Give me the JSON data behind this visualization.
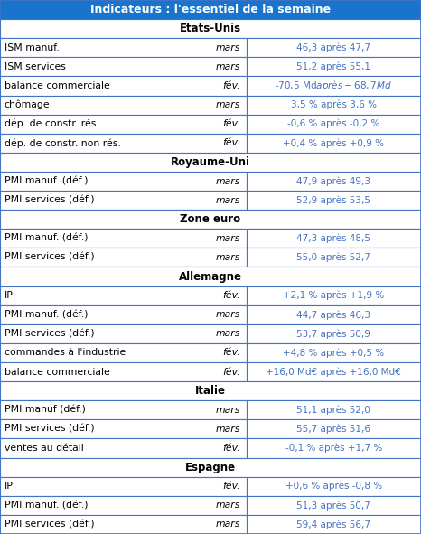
{
  "title": "Indicateurs : l'essentiel de la semaine",
  "title_bg": "#1874CD",
  "title_fg": "#FFFFFF",
  "col3_fg": "#4472C4",
  "border_color": "#4472C4",
  "col_split": 0.585,
  "sections": [
    {
      "name": "Etats-Unis",
      "rows": [
        [
          "ISM manuf.",
          "mars",
          "46,3 après 47,7"
        ],
        [
          "ISM services",
          "mars",
          "51,2 après 55,1"
        ],
        [
          "balance commerciale",
          "fév.",
          "-70,5 Md$ après -68,7 Md$"
        ],
        [
          "chômage",
          "mars",
          "3,5 % après 3,6 %"
        ],
        [
          "dép. de constr. rés.",
          "fév.",
          "-0,6 % après -0,2 %"
        ],
        [
          "dép. de constr. non rés.",
          "fév.",
          "+0,4 % après +0,9 %"
        ]
      ]
    },
    {
      "name": "Royaume-Uni",
      "rows": [
        [
          "PMI manuf. (déf.)",
          "mars",
          "47,9 après 49,3"
        ],
        [
          "PMI services (déf.)",
          "mars",
          "52,9 après 53,5"
        ]
      ]
    },
    {
      "name": "Zone euro",
      "rows": [
        [
          "PMI manuf. (déf.)",
          "mars",
          "47,3 après 48,5"
        ],
        [
          "PMI services (déf.)",
          "mars",
          "55,0 après 52,7"
        ]
      ]
    },
    {
      "name": "Allemagne",
      "rows": [
        [
          "IPI",
          "fév.",
          "+2,1 % après +1,9 %"
        ],
        [
          "PMI manuf. (déf.)",
          "mars",
          "44,7 après 46,3"
        ],
        [
          "PMI services (déf.)",
          "mars",
          "53,7 après 50,9"
        ],
        [
          "commandes à l'industrie",
          "fév.",
          "+4,8 % après +0,5 %"
        ],
        [
          "balance commerciale",
          "fév.",
          "+16,0 Md€ après +16,0 Md€"
        ]
      ]
    },
    {
      "name": "Italie",
      "rows": [
        [
          "PMI manuf (déf.)",
          "mars",
          "51,1 après 52,0"
        ],
        [
          "PMI services (déf.)",
          "mars",
          "55,7 après 51,6"
        ],
        [
          "ventes au détail",
          "fév.",
          "-0,1 % après +1,7 %"
        ]
      ]
    },
    {
      "name": "Espagne",
      "rows": [
        [
          "IPI",
          "fév.",
          "+0,6 % après -0,8 %"
        ],
        [
          "PMI manuf. (déf.)",
          "mars",
          "51,3 après 50,7"
        ],
        [
          "PMI services (déf.)",
          "mars",
          "59,4 après 56,7"
        ]
      ]
    }
  ]
}
